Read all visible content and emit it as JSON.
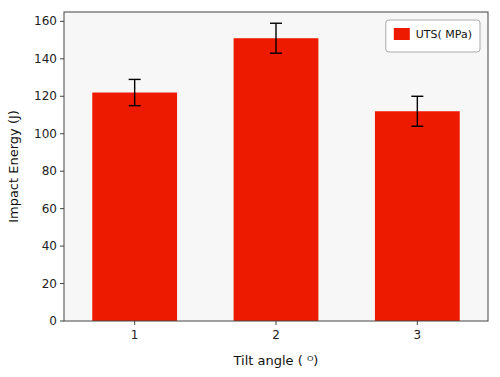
{
  "chart_data": {
    "type": "bar",
    "xlabel": "Tilt angle ( ᴼ)",
    "ylabel": "Impact Energy (J)",
    "categories": [
      "1",
      "2",
      "3"
    ],
    "series": [
      {
        "name": "UTS( MPa)",
        "color": "#ee1a00",
        "values": [
          122,
          151,
          112
        ],
        "errors": [
          7,
          8,
          8
        ]
      }
    ],
    "ylim": [
      0,
      165
    ],
    "yticks": [
      0,
      20,
      40,
      60,
      80,
      100,
      120,
      140,
      160
    ],
    "grid": false,
    "legend": "upper right"
  }
}
